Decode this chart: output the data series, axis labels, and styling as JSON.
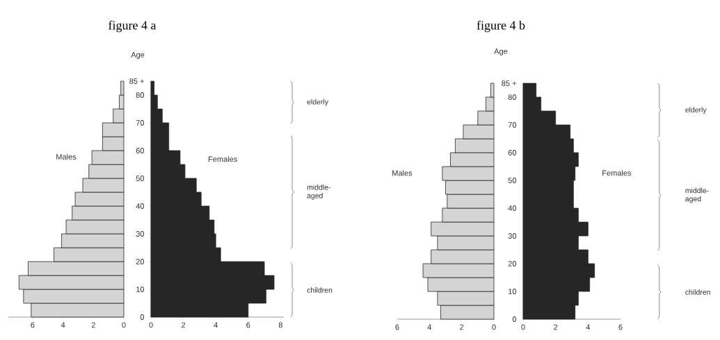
{
  "chart_data": [
    {
      "type": "histogram",
      "orientation": "horizontal",
      "bins": [
        0,
        5,
        10,
        15,
        20,
        25,
        30,
        35,
        40,
        45,
        50,
        55,
        60,
        65,
        70,
        75,
        80,
        85
      ],
      "series": [
        {
          "name": "Males",
          "color": "#d4d4d4",
          "values": [
            6.1,
            6.6,
            6.9,
            6.3,
            4.6,
            4.1,
            3.8,
            3.4,
            3.2,
            2.7,
            2.3,
            2.1,
            1.4,
            1.4,
            0.7,
            0.3,
            0.2
          ]
        }
      ],
      "xlim": [
        7.6,
        0
      ],
      "xticks": [
        6,
        4,
        2,
        0
      ],
      "ylim": [
        0,
        85
      ],
      "tick_labels": "x"
    },
    {
      "type": "histogram",
      "orientation": "horizontal",
      "title": "figure 4 a",
      "ylabel": "Age",
      "bins": [
        0,
        5,
        10,
        15,
        20,
        25,
        30,
        35,
        40,
        45,
        50,
        55,
        60,
        65,
        70,
        75,
        80,
        85
      ],
      "series": [
        {
          "name": "Females",
          "color": "#262626",
          "values": [
            6.0,
            7.1,
            7.6,
            7.0,
            4.3,
            4.0,
            3.9,
            3.6,
            3.1,
            2.8,
            2.1,
            1.8,
            1.1,
            1.1,
            0.7,
            0.4,
            0.2
          ]
        }
      ],
      "xlim": [
        0,
        8.2
      ],
      "xticks": [
        0,
        2,
        4,
        6,
        8
      ],
      "ylim": [
        0,
        85
      ],
      "yticks": [
        0,
        10,
        20,
        30,
        40,
        50,
        60,
        70,
        80,
        {
          "value": 85,
          "label": "85 +"
        }
      ],
      "annotations": [
        "elderly",
        "middle-aged",
        "children"
      ]
    },
    {
      "type": "histogram",
      "orientation": "horizontal",
      "bins": [
        0,
        5,
        10,
        15,
        20,
        25,
        30,
        35,
        40,
        45,
        50,
        55,
        60,
        65,
        70,
        75,
        80,
        85
      ],
      "series": [
        {
          "name": "Males",
          "color": "#d4d4d4",
          "values": [
            3.3,
            3.5,
            4.1,
            4.4,
            3.9,
            3.5,
            3.9,
            3.2,
            2.9,
            3.0,
            3.2,
            2.7,
            2.4,
            1.9,
            1.0,
            0.5,
            0.2
          ]
        }
      ],
      "xlim": [
        6,
        0
      ],
      "xticks": [
        6,
        4,
        2,
        0
      ],
      "ylim": [
        0,
        85
      ],
      "tick_labels": "x"
    },
    {
      "type": "histogram",
      "orientation": "horizontal",
      "title": "figure 4 b",
      "ylabel": "Age",
      "bins": [
        0,
        5,
        10,
        15,
        20,
        25,
        30,
        35,
        40,
        45,
        50,
        55,
        60,
        65,
        70,
        75,
        80,
        85
      ],
      "series": [
        {
          "name": "Females",
          "color": "#262626",
          "values": [
            3.2,
            3.4,
            4.1,
            4.4,
            4.0,
            3.4,
            4.0,
            3.4,
            3.1,
            3.1,
            3.2,
            3.4,
            3.1,
            2.9,
            2.0,
            1.1,
            0.8
          ]
        }
      ],
      "xlim": [
        0,
        6
      ],
      "xticks": [
        0,
        2,
        4,
        6
      ],
      "ylim": [
        0,
        85
      ],
      "yticks": [
        0,
        10,
        20,
        30,
        40,
        50,
        60,
        70,
        80,
        {
          "value": 85,
          "label": "85 +"
        }
      ],
      "annotations": [
        "elderly",
        "middle-aged",
        "children"
      ]
    }
  ]
}
